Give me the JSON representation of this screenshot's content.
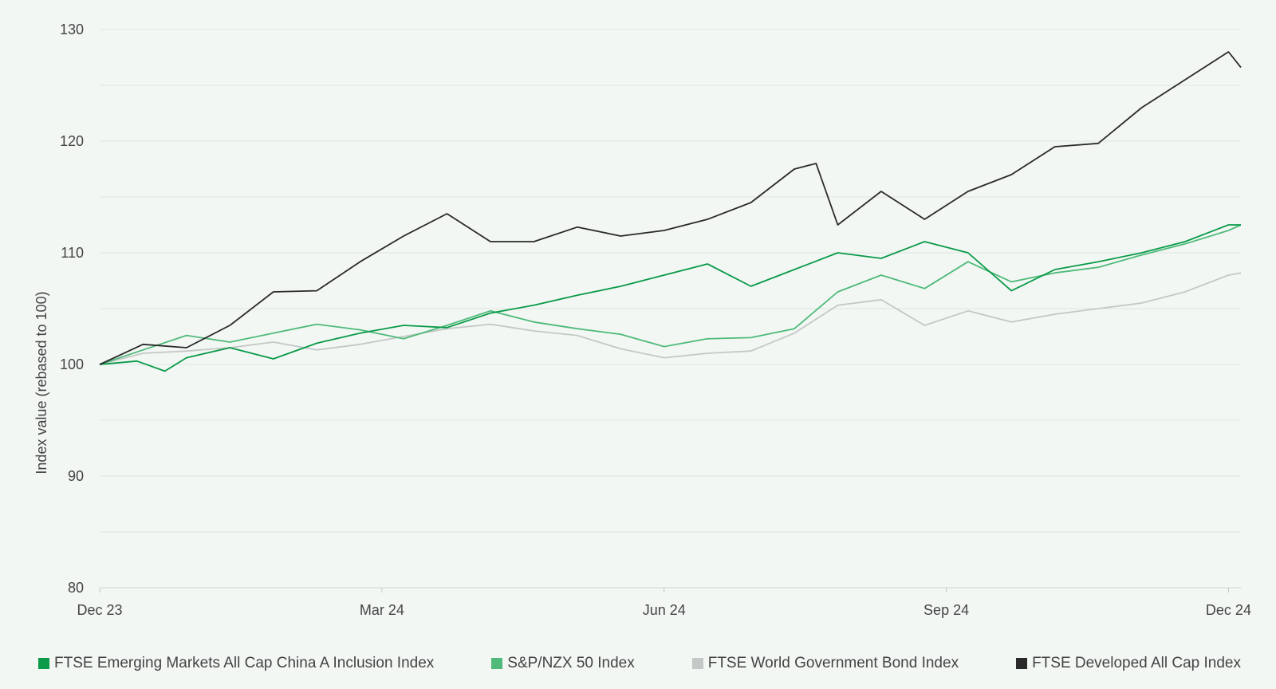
{
  "chart_data": {
    "type": "line",
    "ylabel": "Index value (rebased to 100)",
    "xlabel": "",
    "ylim": [
      80,
      130
    ],
    "yticks": [
      "80",
      "90",
      "100",
      "110",
      "120",
      "130"
    ],
    "x_range": [
      "2023-12-29",
      "2024-12-31"
    ],
    "xticks": [
      {
        "date": "2023-12-29",
        "label": "Dec 23"
      },
      {
        "date": "2024-03-29",
        "label": "Mar 24"
      },
      {
        "date": "2024-06-28",
        "label": "Jun 24"
      },
      {
        "date": "2024-09-27",
        "label": "Sep 24"
      },
      {
        "date": "2024-12-27",
        "label": "Dec 24"
      }
    ],
    "grid": true,
    "legend_position": "bottom",
    "series": [
      {
        "name": "FTSE Emerging Markets All Cap China A Inclusion Index",
        "color": "#0a9a48",
        "values": [
          [
            "2023-12-29",
            100.0
          ],
          [
            "2024-01-10",
            100.3
          ],
          [
            "2024-01-19",
            99.4
          ],
          [
            "2024-01-26",
            100.6
          ],
          [
            "2024-02-09",
            101.5
          ],
          [
            "2024-02-23",
            100.5
          ],
          [
            "2024-03-08",
            101.9
          ],
          [
            "2024-03-22",
            102.8
          ],
          [
            "2024-04-05",
            103.5
          ],
          [
            "2024-04-19",
            103.3
          ],
          [
            "2024-05-03",
            104.6
          ],
          [
            "2024-05-17",
            105.3
          ],
          [
            "2024-05-31",
            106.2
          ],
          [
            "2024-06-14",
            107.0
          ],
          [
            "2024-06-28",
            108.0
          ],
          [
            "2024-07-12",
            109.0
          ],
          [
            "2024-07-26",
            107.0
          ],
          [
            "2024-08-09",
            108.5
          ],
          [
            "2024-08-23",
            110.0
          ],
          [
            "2024-09-06",
            109.5
          ],
          [
            "2024-09-20",
            111.0
          ],
          [
            "2024-10-04",
            110.0
          ],
          [
            "2024-10-18",
            106.6
          ],
          [
            "2024-11-01",
            108.5
          ],
          [
            "2024-11-15",
            109.2
          ],
          [
            "2024-11-29",
            110.0
          ],
          [
            "2024-12-13",
            111.0
          ],
          [
            "2024-12-27",
            112.5
          ],
          [
            "2024-12-31",
            112.5
          ]
        ]
      },
      {
        "name": "S&P/NZX 50 Index",
        "color": "#4fba79",
        "values": [
          [
            "2023-12-29",
            100.0
          ],
          [
            "2024-01-12",
            101.3
          ],
          [
            "2024-01-26",
            102.6
          ],
          [
            "2024-02-09",
            102.0
          ],
          [
            "2024-02-23",
            102.8
          ],
          [
            "2024-03-08",
            103.6
          ],
          [
            "2024-03-22",
            103.1
          ],
          [
            "2024-04-05",
            102.3
          ],
          [
            "2024-04-19",
            103.5
          ],
          [
            "2024-05-03",
            104.8
          ],
          [
            "2024-05-17",
            103.8
          ],
          [
            "2024-05-31",
            103.2
          ],
          [
            "2024-06-14",
            102.7
          ],
          [
            "2024-06-28",
            101.6
          ],
          [
            "2024-07-12",
            102.3
          ],
          [
            "2024-07-26",
            102.4
          ],
          [
            "2024-08-09",
            103.2
          ],
          [
            "2024-08-23",
            106.5
          ],
          [
            "2024-09-06",
            108.0
          ],
          [
            "2024-09-20",
            106.8
          ],
          [
            "2024-10-04",
            109.2
          ],
          [
            "2024-10-18",
            107.4
          ],
          [
            "2024-11-01",
            108.2
          ],
          [
            "2024-11-15",
            108.7
          ],
          [
            "2024-11-29",
            109.8
          ],
          [
            "2024-12-13",
            110.8
          ],
          [
            "2024-12-27",
            112.0
          ],
          [
            "2024-12-31",
            112.5
          ]
        ]
      },
      {
        "name": "FTSE World Government Bond Index",
        "color": "#c4c8c6",
        "values": [
          [
            "2023-12-29",
            100.0
          ],
          [
            "2024-01-12",
            101.0
          ],
          [
            "2024-01-26",
            101.2
          ],
          [
            "2024-02-09",
            101.5
          ],
          [
            "2024-02-23",
            102.0
          ],
          [
            "2024-03-08",
            101.3
          ],
          [
            "2024-03-22",
            101.8
          ],
          [
            "2024-04-05",
            102.5
          ],
          [
            "2024-04-19",
            103.2
          ],
          [
            "2024-05-03",
            103.6
          ],
          [
            "2024-05-17",
            103.0
          ],
          [
            "2024-05-31",
            102.6
          ],
          [
            "2024-06-14",
            101.4
          ],
          [
            "2024-06-28",
            100.6
          ],
          [
            "2024-07-12",
            101.0
          ],
          [
            "2024-07-26",
            101.2
          ],
          [
            "2024-08-09",
            102.8
          ],
          [
            "2024-08-23",
            105.3
          ],
          [
            "2024-09-06",
            105.8
          ],
          [
            "2024-09-20",
            103.5
          ],
          [
            "2024-10-04",
            104.8
          ],
          [
            "2024-10-18",
            103.8
          ],
          [
            "2024-11-01",
            104.5
          ],
          [
            "2024-11-15",
            105.0
          ],
          [
            "2024-11-29",
            105.5
          ],
          [
            "2024-12-13",
            106.5
          ],
          [
            "2024-12-27",
            108.0
          ],
          [
            "2024-12-31",
            108.2
          ]
        ]
      },
      {
        "name": "FTSE Developed All Cap Index",
        "color": "#2a2a2a",
        "values": [
          [
            "2023-12-29",
            100.0
          ],
          [
            "2024-01-12",
            101.8
          ],
          [
            "2024-01-26",
            101.5
          ],
          [
            "2024-02-09",
            103.5
          ],
          [
            "2024-02-23",
            106.5
          ],
          [
            "2024-03-08",
            106.6
          ],
          [
            "2024-03-22",
            109.2
          ],
          [
            "2024-04-05",
            111.5
          ],
          [
            "2024-04-19",
            113.5
          ],
          [
            "2024-05-03",
            111.0
          ],
          [
            "2024-05-17",
            111.0
          ],
          [
            "2024-05-31",
            112.3
          ],
          [
            "2024-06-14",
            111.5
          ],
          [
            "2024-06-28",
            112.0
          ],
          [
            "2024-07-12",
            113.0
          ],
          [
            "2024-07-26",
            114.5
          ],
          [
            "2024-08-09",
            117.5
          ],
          [
            "2024-08-16",
            118.0
          ],
          [
            "2024-08-23",
            112.5
          ],
          [
            "2024-09-06",
            115.5
          ],
          [
            "2024-09-20",
            113.0
          ],
          [
            "2024-10-04",
            115.5
          ],
          [
            "2024-10-18",
            117.0
          ],
          [
            "2024-11-01",
            119.5
          ],
          [
            "2024-11-15",
            119.8
          ],
          [
            "2024-11-29",
            123.0
          ],
          [
            "2024-12-13",
            125.5
          ],
          [
            "2024-12-27",
            128.0
          ],
          [
            "2024-12-31",
            126.6
          ]
        ]
      }
    ]
  }
}
